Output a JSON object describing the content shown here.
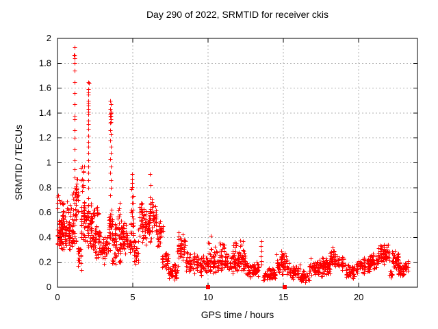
{
  "chart_data": {
    "type": "scatter",
    "title": "Day 290 of 2022, SRMTID for receiver ckis",
    "xlabel": "GPS time / hours",
    "ylabel": "SRMTID / TECUs",
    "xlim": [
      0,
      23.9
    ],
    "ylim": [
      0,
      2
    ],
    "xticks": [
      0,
      5,
      10,
      15,
      20
    ],
    "yticks": [
      0,
      0.2,
      0.4,
      0.6,
      0.8,
      1,
      1.2,
      1.4,
      1.6,
      1.8,
      2
    ],
    "grid": true,
    "grid_color": "#b0b0b0",
    "marker": "plus",
    "marker_color": "#ff0000",
    "axis_color": "#000000",
    "background": "#ffffff",
    "seed": 42,
    "spike_points": [
      [
        1.13,
        1.93
      ],
      [
        1.11,
        1.87
      ],
      [
        1.14,
        1.86
      ],
      [
        1.12,
        1.84
      ],
      [
        1.13,
        1.8
      ],
      [
        1.12,
        1.74
      ],
      [
        1.14,
        1.65
      ],
      [
        1.12,
        1.56
      ],
      [
        1.13,
        1.47
      ],
      [
        1.15,
        1.38
      ],
      [
        1.12,
        1.35
      ],
      [
        1.14,
        1.26
      ],
      [
        1.13,
        1.2
      ],
      [
        1.15,
        1.11
      ],
      [
        1.12,
        1.02
      ],
      [
        1.14,
        0.95
      ],
      [
        1.13,
        0.88
      ],
      [
        1.27,
        0.87
      ],
      [
        1.29,
        0.83
      ],
      [
        1.26,
        0.79
      ],
      [
        1.28,
        0.75
      ],
      [
        1.25,
        0.71
      ],
      [
        2.03,
        1.65
      ],
      [
        2.07,
        1.64
      ],
      [
        2.04,
        1.59
      ],
      [
        2.05,
        1.57
      ],
      [
        2.03,
        1.55
      ],
      [
        2.06,
        1.5
      ],
      [
        2.04,
        1.48
      ],
      [
        2.05,
        1.46
      ],
      [
        2.04,
        1.43
      ],
      [
        2.06,
        1.41
      ],
      [
        2.03,
        1.39
      ],
      [
        2.05,
        1.34
      ],
      [
        2.04,
        1.31
      ],
      [
        2.06,
        1.27
      ],
      [
        2.03,
        1.22
      ],
      [
        2.05,
        1.17
      ],
      [
        2.04,
        1.13
      ],
      [
        2.06,
        1.08
      ],
      [
        2.04,
        1.02
      ],
      [
        2.05,
        0.97
      ],
      [
        2.03,
        0.92
      ],
      [
        2.05,
        0.86
      ],
      [
        2.04,
        0.8
      ],
      [
        3.52,
        1.5
      ],
      [
        3.54,
        1.47
      ],
      [
        3.5,
        1.43
      ],
      [
        3.53,
        1.41
      ],
      [
        3.55,
        1.4
      ],
      [
        3.51,
        1.39
      ],
      [
        3.54,
        1.38
      ],
      [
        3.52,
        1.37
      ],
      [
        3.53,
        1.35
      ],
      [
        3.55,
        1.33
      ],
      [
        3.52,
        1.32
      ],
      [
        3.5,
        1.26
      ],
      [
        3.54,
        1.23
      ],
      [
        3.52,
        1.18
      ],
      [
        3.55,
        1.13
      ],
      [
        3.53,
        1.08
      ],
      [
        3.51,
        1.03
      ],
      [
        3.54,
        0.97
      ],
      [
        3.52,
        0.92
      ],
      [
        3.53,
        0.86
      ],
      [
        3.55,
        0.8
      ],
      [
        3.52,
        0.74
      ],
      [
        4.95,
        0.91
      ],
      [
        4.93,
        0.87
      ],
      [
        4.96,
        0.84
      ],
      [
        6.15,
        0.91
      ],
      [
        6.17,
        0.82
      ],
      [
        6.14,
        0.72
      ],
      [
        6.16,
        0.68
      ],
      [
        13.52,
        0.37
      ],
      [
        13.5,
        0.33
      ],
      [
        13.53,
        0.29
      ],
      [
        13.51,
        0.25
      ],
      [
        13.54,
        0.21
      ],
      [
        13.52,
        0.18
      ],
      [
        18.27,
        0.32
      ],
      [
        18.3,
        0.29
      ]
    ],
    "zero_squares": [
      [
        10.0,
        0
      ],
      [
        15.1,
        0
      ]
    ],
    "clusters": [
      [
        0.0,
        0.18,
        0.25,
        0.62,
        30
      ],
      [
        0.02,
        0.14,
        0.6,
        0.78,
        6
      ],
      [
        0.15,
        0.5,
        0.28,
        0.62,
        48
      ],
      [
        0.2,
        0.45,
        0.6,
        0.73,
        7
      ],
      [
        0.5,
        0.95,
        0.28,
        0.58,
        55
      ],
      [
        0.55,
        0.9,
        0.56,
        0.7,
        9
      ],
      [
        0.95,
        1.22,
        0.35,
        0.8,
        38
      ],
      [
        1.2,
        1.38,
        0.55,
        0.9,
        18
      ],
      [
        1.35,
        1.58,
        0.1,
        0.42,
        22
      ],
      [
        1.5,
        1.92,
        0.32,
        0.72,
        45
      ],
      [
        1.55,
        1.78,
        0.72,
        1.02,
        12
      ],
      [
        1.95,
        2.22,
        0.3,
        0.75,
        40
      ],
      [
        2.2,
        2.48,
        0.5,
        0.72,
        14
      ],
      [
        2.2,
        2.5,
        0.28,
        0.5,
        25
      ],
      [
        2.5,
        2.82,
        0.34,
        0.52,
        30
      ],
      [
        2.55,
        2.8,
        0.53,
        0.65,
        7
      ],
      [
        2.5,
        2.78,
        0.22,
        0.34,
        10
      ],
      [
        2.85,
        3.12,
        0.15,
        0.45,
        28
      ],
      [
        3.12,
        3.38,
        0.18,
        0.5,
        18
      ],
      [
        3.4,
        3.65,
        0.28,
        0.68,
        35
      ],
      [
        3.65,
        3.92,
        0.14,
        0.55,
        32
      ],
      [
        3.92,
        4.18,
        0.2,
        0.7,
        30
      ],
      [
        4.2,
        4.65,
        0.22,
        0.58,
        48
      ],
      [
        4.65,
        4.85,
        0.25,
        0.45,
        15
      ],
      [
        4.85,
        5.08,
        0.3,
        0.9,
        30
      ],
      [
        5.08,
        5.35,
        0.15,
        0.4,
        22
      ],
      [
        5.35,
        5.78,
        0.35,
        0.76,
        42
      ],
      [
        5.75,
        6.12,
        0.3,
        0.68,
        38
      ],
      [
        6.1,
        6.28,
        0.35,
        0.75,
        12
      ],
      [
        6.28,
        6.58,
        0.45,
        0.72,
        30
      ],
      [
        6.55,
        6.98,
        0.28,
        0.58,
        35
      ],
      [
        6.95,
        7.38,
        0.12,
        0.32,
        35
      ],
      [
        7.35,
        7.98,
        0.05,
        0.2,
        48
      ],
      [
        7.95,
        8.58,
        0.18,
        0.44,
        52
      ],
      [
        8.55,
        9.38,
        0.1,
        0.3,
        58
      ],
      [
        9.35,
        9.98,
        0.08,
        0.28,
        46
      ],
      [
        9.95,
        10.5,
        0.1,
        0.33,
        42
      ],
      [
        10.0,
        10.18,
        0.3,
        0.46,
        5
      ],
      [
        10.5,
        11.28,
        0.1,
        0.32,
        60
      ],
      [
        10.7,
        11.15,
        0.28,
        0.38,
        8
      ],
      [
        11.28,
        11.98,
        0.1,
        0.3,
        55
      ],
      [
        11.68,
        11.88,
        0.28,
        0.42,
        7
      ],
      [
        11.98,
        12.48,
        0.12,
        0.33,
        40
      ],
      [
        12.05,
        12.3,
        0.3,
        0.4,
        5
      ],
      [
        12.48,
        13.35,
        0.06,
        0.22,
        60
      ],
      [
        13.62,
        14.52,
        0.04,
        0.16,
        65
      ],
      [
        14.52,
        15.28,
        0.08,
        0.28,
        55
      ],
      [
        14.88,
        15.18,
        0.24,
        0.32,
        7
      ],
      [
        15.28,
        16.1,
        0.05,
        0.2,
        60
      ],
      [
        16.1,
        16.7,
        0.03,
        0.14,
        45
      ],
      [
        16.7,
        17.7,
        0.08,
        0.24,
        70
      ],
      [
        17.7,
        18.1,
        0.1,
        0.25,
        35
      ],
      [
        18.1,
        18.45,
        0.15,
        0.32,
        30
      ],
      [
        18.45,
        19.1,
        0.12,
        0.28,
        50
      ],
      [
        19.1,
        19.9,
        0.07,
        0.19,
        55
      ],
      [
        19.9,
        20.7,
        0.1,
        0.25,
        60
      ],
      [
        20.7,
        21.3,
        0.14,
        0.28,
        45
      ],
      [
        21.3,
        22.05,
        0.18,
        0.37,
        58
      ],
      [
        22.05,
        22.22,
        0.07,
        0.15,
        10
      ],
      [
        22.2,
        22.65,
        0.12,
        0.3,
        40
      ],
      [
        22.65,
        23.3,
        0.08,
        0.22,
        48
      ]
    ]
  }
}
